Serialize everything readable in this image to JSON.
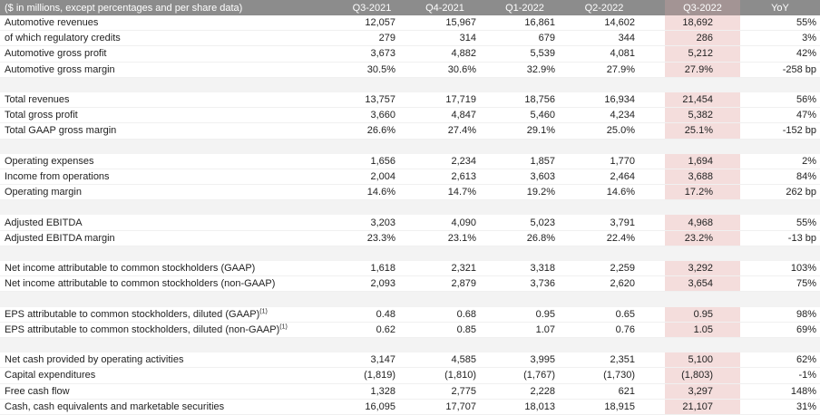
{
  "table": {
    "header": [
      "($ in millions, except percentages and per share data)",
      "Q3-2021",
      "Q4-2021",
      "Q1-2022",
      "Q2-2022",
      "Q3-2022",
      "YoY"
    ],
    "groups": [
      [
        {
          "label": "Automotive revenues",
          "values": [
            "12,057",
            "15,967",
            "16,861",
            "14,602",
            "18,692",
            "55%"
          ]
        },
        {
          "label": "of which regulatory credits",
          "values": [
            "279",
            "314",
            "679",
            "344",
            "286",
            "3%"
          ]
        },
        {
          "label": "Automotive gross profit",
          "values": [
            "3,673",
            "4,882",
            "5,539",
            "4,081",
            "5,212",
            "42%"
          ]
        },
        {
          "label": "Automotive gross margin",
          "values": [
            "30.5%",
            "30.6%",
            "32.9%",
            "27.9%",
            "27.9%",
            "-258 bp"
          ]
        }
      ],
      [
        {
          "label": "Total revenues",
          "values": [
            "13,757",
            "17,719",
            "18,756",
            "16,934",
            "21,454",
            "56%"
          ]
        },
        {
          "label": "Total gross profit",
          "values": [
            "3,660",
            "4,847",
            "5,460",
            "4,234",
            "5,382",
            "47%"
          ]
        },
        {
          "label": "Total GAAP gross margin",
          "values": [
            "26.6%",
            "27.4%",
            "29.1%",
            "25.0%",
            "25.1%",
            "-152 bp"
          ]
        }
      ],
      [
        {
          "label": "Operating expenses",
          "values": [
            "1,656",
            "2,234",
            "1,857",
            "1,770",
            "1,694",
            "2%"
          ]
        },
        {
          "label": "Income from operations",
          "values": [
            "2,004",
            "2,613",
            "3,603",
            "2,464",
            "3,688",
            "84%"
          ]
        },
        {
          "label": "Operating margin",
          "values": [
            "14.6%",
            "14.7%",
            "19.2%",
            "14.6%",
            "17.2%",
            "262 bp"
          ]
        }
      ],
      [
        {
          "label": "Adjusted EBITDA",
          "values": [
            "3,203",
            "4,090",
            "5,023",
            "3,791",
            "4,968",
            "55%"
          ]
        },
        {
          "label": "Adjusted EBITDA margin",
          "values": [
            "23.3%",
            "23.1%",
            "26.8%",
            "22.4%",
            "23.2%",
            "-13 bp"
          ]
        }
      ],
      [
        {
          "label": "Net income attributable to common stockholders (GAAP)",
          "values": [
            "1,618",
            "2,321",
            "3,318",
            "2,259",
            "3,292",
            "103%"
          ]
        },
        {
          "label": "Net income attributable to common stockholders (non-GAAP)",
          "values": [
            "2,093",
            "2,879",
            "3,736",
            "2,620",
            "3,654",
            "75%"
          ]
        }
      ],
      [
        {
          "label": "EPS attributable to common stockholders, diluted (GAAP)",
          "note": "(1)",
          "values": [
            "0.48",
            "0.68",
            "0.95",
            "0.65",
            "0.95",
            "98%"
          ]
        },
        {
          "label": "EPS attributable to common stockholders, diluted (non-GAAP)",
          "note": "(1)",
          "values": [
            "0.62",
            "0.85",
            "1.07",
            "0.76",
            "1.05",
            "69%"
          ]
        }
      ],
      [
        {
          "label": "Net cash provided by operating activities",
          "values": [
            "3,147",
            "4,585",
            "3,995",
            "2,351",
            "5,100",
            "62%"
          ]
        },
        {
          "label": "Capital expenditures",
          "values": [
            "(1,819)",
            "(1,810)",
            "(1,767)",
            "(1,730)",
            "(1,803)",
            "-1%"
          ]
        },
        {
          "label": "Free cash flow",
          "values": [
            "1,328",
            "2,775",
            "2,228",
            "621",
            "3,297",
            "148%"
          ]
        },
        {
          "label": "Cash, cash equivalents and marketable securities",
          "values": [
            "16,095",
            "17,707",
            "18,013",
            "18,915",
            "21,107",
            "31%"
          ]
        }
      ]
    ]
  }
}
